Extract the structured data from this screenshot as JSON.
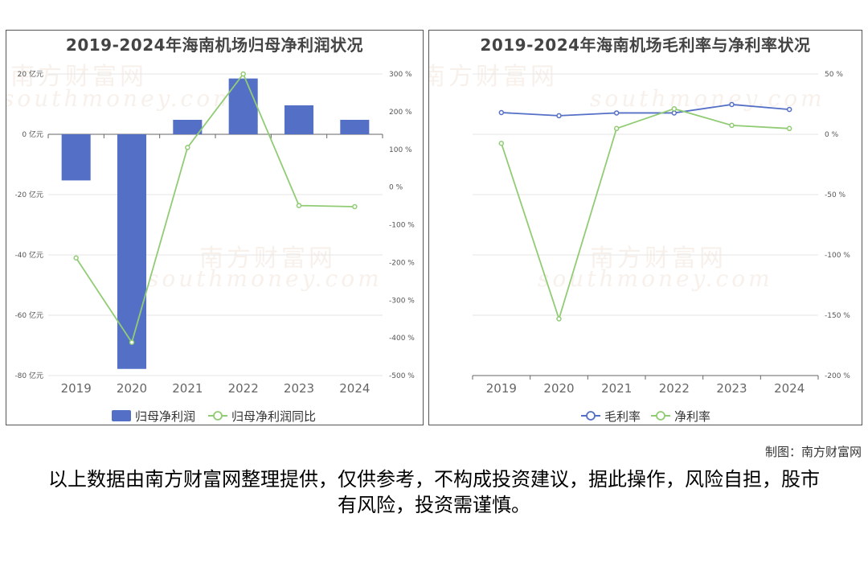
{
  "charts": {
    "left": {
      "title": "2019-2024年海南机场归母净利润状况"
    },
    "right": {
      "title": "2019-2024年海南机场毛利率与净利率状况"
    }
  },
  "watermark": {
    "brand": "南方财富网",
    "site": "southmoney.com"
  },
  "credit": "制图：南方财富网",
  "disclaimer": "以上数据由南方财富网整理提供，仅供参考，不构成投资建议，据此操作，风险自担，股市有风险，投资需谨慎。",
  "colors": {
    "bar": "#5470c6",
    "green": "#91cc75",
    "blue": "#5470c6"
  },
  "chart_data": [
    {
      "type": "bar",
      "title": "2019-2024年海南机场归母净利润状况",
      "categories": [
        "2019",
        "2020",
        "2021",
        "2022",
        "2023",
        "2024"
      ],
      "series": [
        {
          "name": "归母净利润",
          "type": "bar",
          "axis": "left",
          "values": [
            -15.3,
            -77.8,
            4.8,
            18.5,
            9.6,
            4.8
          ]
        },
        {
          "name": "归母净利润同比",
          "type": "line",
          "axis": "right",
          "values": [
            -188,
            -412,
            105,
            300,
            -49,
            -52
          ]
        }
      ],
      "y_left": {
        "min": -80,
        "max": 20,
        "step": 20,
        "suffix": " 亿元"
      },
      "y_right": {
        "min": -500,
        "max": 300,
        "step": 100,
        "suffix": " %"
      },
      "legend": "bottom-center",
      "grid": true
    },
    {
      "type": "line",
      "title": "2019-2024年海南机场毛利率与净利率状况",
      "categories": [
        "2019",
        "2020",
        "2021",
        "2022",
        "2023",
        "2024"
      ],
      "series": [
        {
          "name": "毛利率",
          "values": [
            18,
            15.4,
            17.7,
            17.7,
            24.7,
            20.6
          ]
        },
        {
          "name": "净利率",
          "values": [
            -7.5,
            -153,
            4.8,
            21.2,
            7.4,
            4.8
          ]
        }
      ],
      "y_right": {
        "min": -200,
        "max": 50,
        "step": 50,
        "suffix": " %"
      },
      "legend": "bottom-center",
      "grid": true
    }
  ]
}
